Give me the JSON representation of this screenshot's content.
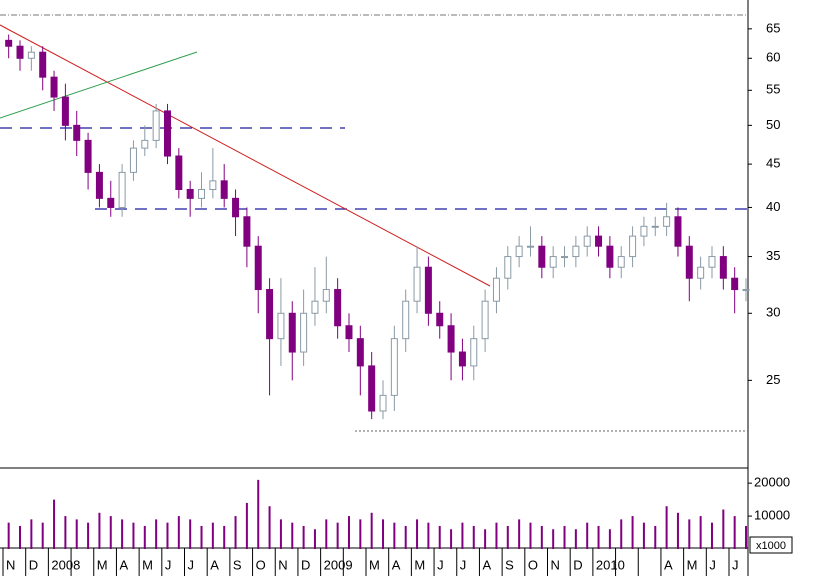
{
  "chart_data": {
    "type": "candlestick",
    "categories": [
      "N",
      "D",
      "2008",
      null,
      "M",
      "A",
      "M",
      "J",
      "J",
      "A",
      "S",
      "O",
      "N",
      "D",
      "2009",
      null,
      "M",
      "A",
      "M",
      "J",
      "J",
      "A",
      "S",
      "O",
      "N",
      "D",
      "2010",
      null,
      null,
      "A",
      "M",
      "J",
      "J"
    ],
    "candles": [
      [
        63,
        64,
        60,
        62
      ],
      [
        62,
        63,
        58,
        60
      ],
      [
        60,
        62,
        58,
        61
      ],
      [
        61,
        62,
        55,
        57
      ],
      [
        57,
        58,
        52,
        54
      ],
      [
        54,
        56,
        48,
        50
      ],
      [
        50,
        52,
        46,
        48
      ],
      [
        48,
        49,
        42,
        44
      ],
      [
        44,
        45,
        40,
        41
      ],
      [
        41,
        43,
        39,
        40
      ],
      [
        40,
        45,
        39,
        44
      ],
      [
        44,
        48,
        43,
        47
      ],
      [
        47,
        50,
        46,
        48
      ],
      [
        48,
        53,
        47,
        52
      ],
      [
        52,
        53,
        45,
        46
      ],
      [
        46,
        47,
        41,
        42
      ],
      [
        42,
        43,
        39,
        41
      ],
      [
        41,
        44,
        40,
        42
      ],
      [
        42,
        47,
        41,
        43
      ],
      [
        43,
        45,
        40,
        41
      ],
      [
        41,
        42,
        37,
        39
      ],
      [
        39,
        40,
        34,
        36
      ],
      [
        36,
        37,
        30,
        32
      ],
      [
        32,
        33,
        24,
        28
      ],
      [
        28,
        33,
        26,
        30
      ],
      [
        30,
        31,
        25,
        27
      ],
      [
        27,
        32,
        26,
        30
      ],
      [
        30,
        34,
        29,
        31
      ],
      [
        31,
        35,
        30,
        32
      ],
      [
        32,
        33,
        28,
        29
      ],
      [
        29,
        30,
        27,
        28
      ],
      [
        28,
        29,
        24,
        26
      ],
      [
        26,
        27,
        22.5,
        23
      ],
      [
        23,
        25,
        22.5,
        24
      ],
      [
        24,
        29,
        23,
        28
      ],
      [
        28,
        32,
        27,
        31
      ],
      [
        31,
        36,
        30,
        34
      ],
      [
        34,
        35,
        29,
        30
      ],
      [
        30,
        31,
        28,
        29
      ],
      [
        29,
        30,
        25,
        27
      ],
      [
        27,
        28,
        25,
        26
      ],
      [
        26,
        29,
        25,
        28
      ],
      [
        28,
        32,
        27,
        31
      ],
      [
        31,
        34,
        30,
        33
      ],
      [
        33,
        36,
        32,
        35
      ],
      [
        35,
        37,
        34,
        36
      ],
      [
        36,
        38,
        35,
        36
      ],
      [
        36,
        37,
        33,
        34
      ],
      [
        34,
        36,
        33,
        35
      ],
      [
        35,
        36,
        34,
        35
      ],
      [
        35,
        37,
        34,
        36
      ],
      [
        36,
        38,
        35,
        37
      ],
      [
        37,
        38,
        35,
        36
      ],
      [
        36,
        37,
        33,
        34
      ],
      [
        34,
        36,
        33,
        35
      ],
      [
        35,
        38,
        34,
        37
      ],
      [
        37,
        39,
        36,
        38
      ],
      [
        38,
        39,
        37,
        38
      ],
      [
        38,
        40.5,
        37,
        39
      ],
      [
        39,
        40,
        35,
        36
      ],
      [
        36,
        37,
        31,
        33
      ],
      [
        33,
        35,
        32,
        34
      ],
      [
        34,
        36,
        33,
        35
      ],
      [
        35,
        36,
        32,
        33
      ],
      [
        33,
        34,
        30,
        32
      ],
      [
        32,
        33,
        31,
        32
      ]
    ],
    "volume": [
      8000,
      7000,
      9000,
      8000,
      15000,
      10000,
      9000,
      8000,
      11000,
      10000,
      9000,
      8000,
      7000,
      9000,
      8000,
      10000,
      9000,
      7000,
      8000,
      7000,
      10000,
      14000,
      21000,
      13000,
      9000,
      8000,
      7000,
      6000,
      9000,
      8000,
      10000,
      9000,
      11000,
      9000,
      8000,
      7000,
      9000,
      8000,
      7000,
      6000,
      8000,
      7000,
      6000,
      8000,
      7000,
      9000,
      8000,
      7000,
      6000,
      7000,
      6000,
      8000,
      7000,
      6000,
      9000,
      10000,
      8000,
      7000,
      13000,
      11000,
      9000,
      10000,
      8000,
      12000,
      10000,
      7000
    ],
    "up_color": "#ffffff",
    "down_color": "#800080",
    "edge_color": "#8a9aa6",
    "log_y": true,
    "ylim": [
      19.7,
      70.3
    ],
    "yticks": [
      25,
      30,
      35,
      40,
      45,
      50,
      55,
      60,
      65
    ],
    "vol_ylim": [
      0,
      24000
    ],
    "vol_yticks": [
      10000,
      20000
    ],
    "volume_unit": "x1000"
  }
}
